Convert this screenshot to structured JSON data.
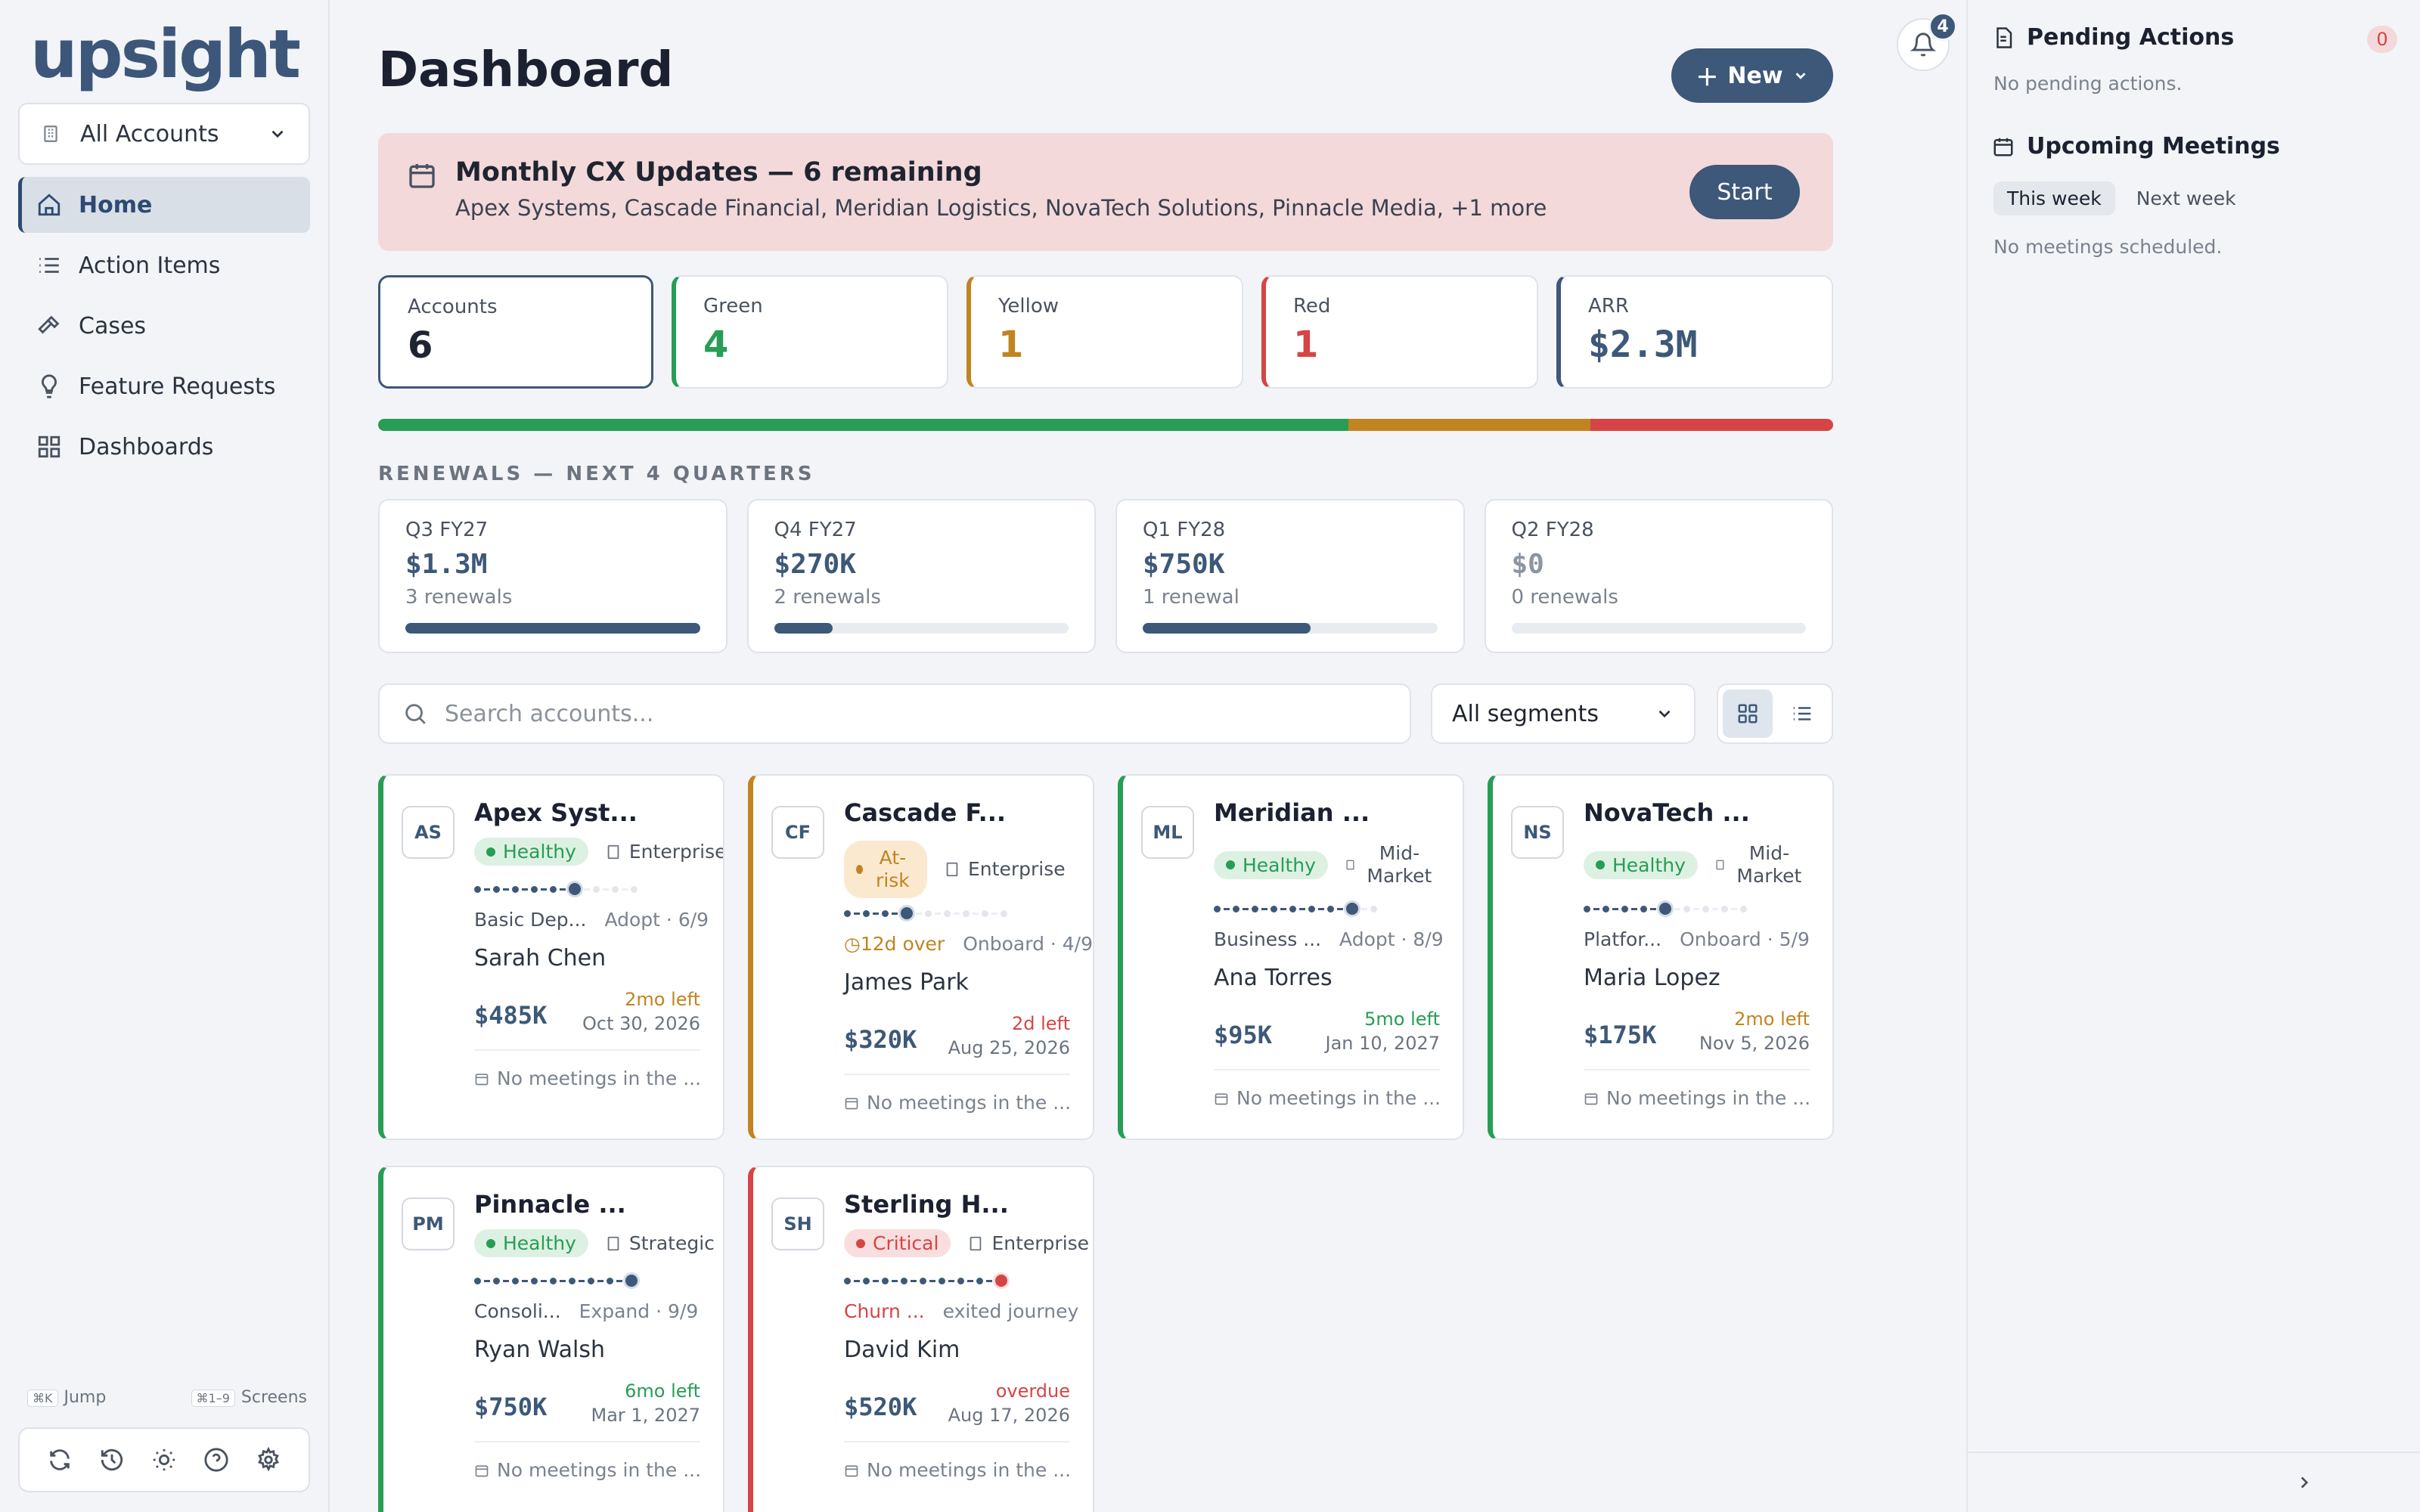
{
  "sidebar": {
    "logo": "upsight",
    "account_filter": "All Accounts",
    "nav": [
      {
        "label": "Home",
        "icon": "home-icon",
        "active": true
      },
      {
        "label": "Action Items",
        "icon": "list-icon"
      },
      {
        "label": "Cases",
        "icon": "hammer-icon"
      },
      {
        "label": "Feature Requests",
        "icon": "lightbulb-icon"
      },
      {
        "label": "Dashboards",
        "icon": "grid-icon"
      }
    ],
    "shortcut_jump_key": "⌘K",
    "shortcut_jump_label": "Jump",
    "shortcut_screens_key": "⌘1–9",
    "shortcut_screens_label": "Screens"
  },
  "header": {
    "title": "Dashboard",
    "new_label": "New",
    "notification_count": "4"
  },
  "banner": {
    "title": "Monthly CX Updates — 6 remaining",
    "subtitle": "Apex Systems, Cascade Financial, Meridian Logistics, NovaTech Solutions, Pinnacle Media, +1 more",
    "start_label": "Start"
  },
  "kpis": {
    "accounts_label": "Accounts",
    "accounts_value": "6",
    "green_label": "Green",
    "green_value": "4",
    "yellow_label": "Yellow",
    "yellow_value": "1",
    "red_label": "Red",
    "red_value": "1",
    "arr_label": "ARR",
    "arr_value": "$2.3M"
  },
  "health_distribution": {
    "green": 4,
    "yellow": 1,
    "red": 1
  },
  "colors": {
    "green": "#279d55",
    "yellow": "#c18420",
    "red": "#d64545",
    "brand": "#3d5878"
  },
  "renewals": {
    "title": "RENEWALS — NEXT 4 QUARTERS",
    "quarters": [
      {
        "q": "Q3 FY27",
        "amount": "$1.3M",
        "count": "3 renewals",
        "fill": 1.0
      },
      {
        "q": "Q4 FY27",
        "amount": "$270K",
        "count": "2 renewals",
        "fill": 0.2
      },
      {
        "q": "Q1 FY28",
        "amount": "$750K",
        "count": "1 renewal",
        "fill": 0.57
      },
      {
        "q": "Q2 FY28",
        "amount": "$0",
        "count": "0 renewals",
        "fill": 0
      }
    ]
  },
  "search": {
    "placeholder": "Search accounts...",
    "segment_filter": "All segments"
  },
  "accounts": [
    {
      "initials": "AS",
      "name": "Apex Syst...",
      "health": "Healthy",
      "segment": "Enterprise",
      "stage": "Basic Dep...",
      "stage_right": "Adopt · 6/9",
      "owner": "Sarah Chen",
      "arr": "$485K",
      "left": "2mo left",
      "date": "Oct 30, 2026",
      "meetings": "No meetings in the ...",
      "steps_done": 6,
      "steps_total": 9
    },
    {
      "initials": "CF",
      "name": "Cascade F...",
      "health": "At-risk",
      "segment": "Enterprise",
      "stage": "12d over",
      "stage_right": "Onboard · 4/9",
      "owner": "James Park",
      "arr": "$320K",
      "left": "2d left",
      "date": "Aug 25, 2026",
      "meetings": "No meetings in the ...",
      "steps_done": 4,
      "steps_total": 9
    },
    {
      "initials": "ML",
      "name": "Meridian ...",
      "health": "Healthy",
      "segment": "Mid-Market",
      "stage": "Business ...",
      "stage_right": "Adopt · 8/9",
      "owner": "Ana Torres",
      "arr": "$95K",
      "left": "5mo left",
      "date": "Jan 10, 2027",
      "meetings": "No meetings in the ...",
      "steps_done": 8,
      "steps_total": 9
    },
    {
      "initials": "NS",
      "name": "NovaTech ...",
      "health": "Healthy",
      "segment": "Mid-Market",
      "stage": "Platfor...",
      "stage_right": "Onboard · 5/9",
      "owner": "Maria Lopez",
      "arr": "$175K",
      "left": "2mo left",
      "date": "Nov 5, 2026",
      "meetings": "No meetings in the ...",
      "steps_done": 5,
      "steps_total": 9
    },
    {
      "initials": "PM",
      "name": "Pinnacle ...",
      "health": "Healthy",
      "segment": "Strategic",
      "stage": "Consoli...",
      "stage_right": "Expand · 9/9",
      "owner": "Ryan Walsh",
      "arr": "$750K",
      "left": "6mo left",
      "date": "Mar 1, 2027",
      "meetings": "No meetings in the ...",
      "steps_done": 9,
      "steps_total": 9
    },
    {
      "initials": "SH",
      "name": "Sterling H...",
      "health": "Critical",
      "segment": "Enterprise",
      "stage": "Churn ...",
      "stage_right": "exited journey",
      "owner": "David Kim",
      "arr": "$520K",
      "left": "overdue",
      "date": "Aug 17, 2026",
      "meetings": "No meetings in the ...",
      "steps_done": 9,
      "steps_total": 9
    }
  ],
  "right_panel": {
    "pending_title": "Pending Actions",
    "pending_count": "0",
    "pending_empty": "No pending actions.",
    "meetings_title": "Upcoming Meetings",
    "tab_this_week": "This week",
    "tab_next_week": "Next week",
    "meetings_empty": "No meetings scheduled."
  }
}
